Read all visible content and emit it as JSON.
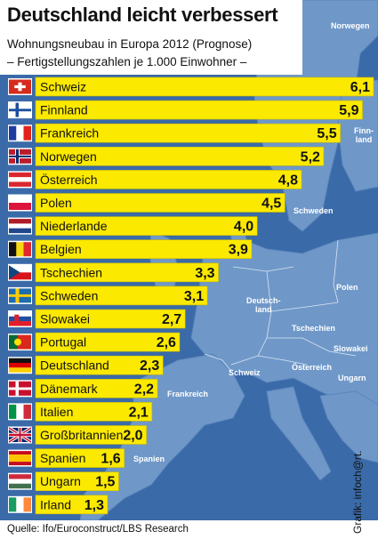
{
  "title": "Deutschland leicht verbessert",
  "subtitle1": "Wohnungsneubau in Europa 2012 (Prognose)",
  "subtitle2": "– Fertigstellungszahlen je 1.000 Einwohner –",
  "source": "Quelle: Ifo/Euroconstruct/LBS Research",
  "credit": "Grafik: infoch@rt.",
  "colors": {
    "bar": "#fbe900",
    "background_sea": "#3a6aa8",
    "land": "#6f98c9",
    "label": "#111111"
  },
  "map_labels": {
    "norwegen": "Norwegen",
    "finnland": "Finn-\nland",
    "schweden": "Schweden",
    "polen": "Polen",
    "deutschland": "Deutsch-\nland",
    "tschechien": "Tschechien",
    "slowakei": "Slowakei",
    "schweiz": "Schweiz",
    "oesterreich": "Österreich",
    "ungarn": "Ungarn",
    "frankreich": "Frankreich",
    "spanien": "Spanien"
  },
  "chart_data": {
    "type": "bar",
    "orientation": "horizontal",
    "categories": [
      "Schweiz",
      "Finnland",
      "Frankreich",
      "Norwegen",
      "Österreich",
      "Polen",
      "Niederlande",
      "Belgien",
      "Tschechien",
      "Schweden",
      "Slowakei",
      "Portugal",
      "Deutschland",
      "Dänemark",
      "Italien",
      "Großbritannien",
      "Spanien",
      "Ungarn",
      "Irland"
    ],
    "values": [
      6.1,
      5.9,
      5.5,
      5.2,
      4.8,
      4.5,
      4.0,
      3.9,
      3.3,
      3.1,
      2.7,
      2.6,
      2.3,
      2.2,
      2.1,
      2.0,
      1.6,
      1.5,
      1.3
    ],
    "value_labels": [
      "6,1",
      "5,9",
      "5,5",
      "5,2",
      "4,8",
      "4,5",
      "4,0",
      "3,9",
      "3,3",
      "3,1",
      "2,7",
      "2,6",
      "2,3",
      "2,2",
      "2,1",
      "2,0",
      "1,6",
      "1,5",
      "1,3"
    ],
    "flags": [
      "switzerland",
      "finland",
      "france",
      "norway",
      "austria",
      "poland",
      "netherlands",
      "belgium",
      "czechia",
      "sweden",
      "slovakia",
      "portugal",
      "germany",
      "denmark",
      "italy",
      "united-kingdom",
      "spain",
      "hungary",
      "ireland"
    ],
    "xlim": [
      0,
      6.1
    ],
    "grid": false
  }
}
